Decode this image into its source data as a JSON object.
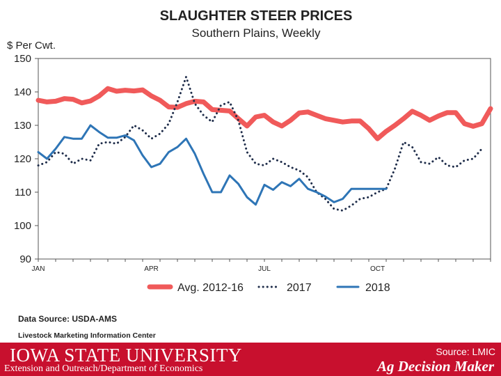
{
  "chart_data": {
    "type": "line",
    "title": "SLAUGHTER STEER PRICES",
    "subtitle": "Southern Plains, Weekly",
    "ylabel": "$ Per Cwt.",
    "xlabel": "",
    "ylim": [
      90,
      150
    ],
    "yticks": [
      90,
      100,
      110,
      120,
      130,
      140,
      150
    ],
    "xlim": [
      1,
      53
    ],
    "xtick_labels": [
      {
        "label": "JAN",
        "week": 1
      },
      {
        "label": "APR",
        "week": 14
      },
      {
        "label": "JUL",
        "week": 27
      },
      {
        "label": "OCT",
        "week": 40
      }
    ],
    "grid": false,
    "legend": "bottom",
    "series": [
      {
        "name": "Avg. 2012-16",
        "color": "#f05a5a",
        "style": "thick",
        "values": [
          137.5,
          137,
          137.2,
          138,
          137.8,
          136.7,
          137.3,
          138.8,
          141,
          140.2,
          140.5,
          140.3,
          140.6,
          138.8,
          137.5,
          135.5,
          135.4,
          136.5,
          137.2,
          137,
          134.7,
          134.5,
          134.3,
          132,
          129.8,
          132.5,
          133,
          131,
          129.8,
          131.5,
          133.7,
          134,
          133,
          132,
          131.5,
          131,
          131.3,
          131.3,
          129,
          126,
          128.2,
          130,
          132,
          134.2,
          133,
          131.5,
          132.8,
          133.8,
          133.8,
          130.5,
          129.7,
          130.5,
          135
        ]
      },
      {
        "name": "2017",
        "color": "#1f2d4a",
        "style": "dotted",
        "values": [
          118,
          119,
          122,
          121.5,
          118.5,
          120,
          119.5,
          124.5,
          125,
          124.5,
          126.5,
          130,
          128.5,
          126,
          127.5,
          130.5,
          137,
          144.5,
          136.5,
          133,
          131,
          136,
          137,
          131.5,
          122,
          118.5,
          118,
          120,
          119,
          117.5,
          116.5,
          114.5,
          110,
          108,
          105,
          104.5,
          106,
          108,
          108.5,
          110,
          111,
          117,
          125,
          123.5,
          119,
          118.5,
          120.5,
          118,
          117.5,
          119.5,
          120,
          123
        ]
      },
      {
        "name": "2018",
        "color": "#2e75b6",
        "style": "solid",
        "values": [
          122,
          120,
          123,
          126.5,
          126,
          126,
          130,
          128,
          126.3,
          126.3,
          127,
          125.5,
          121,
          117.5,
          118.5,
          122,
          123.5,
          126,
          121.5,
          115.5,
          110,
          110,
          115,
          112.5,
          108.5,
          106.3,
          112.2,
          110.7,
          113,
          111.8,
          114,
          111,
          110,
          108.7,
          107,
          108,
          111,
          111,
          111,
          111,
          111
        ]
      }
    ]
  },
  "data_source": "Data Source:  USDA-AMS",
  "lmic_label": "Livestock Marketing Information Center",
  "footer": {
    "university": "IOWA STATE UNIVERSITY",
    "department": "Extension and Outreach/Department of Economics",
    "source": "Source: LMIC",
    "brand": "Ag Decision Maker"
  }
}
